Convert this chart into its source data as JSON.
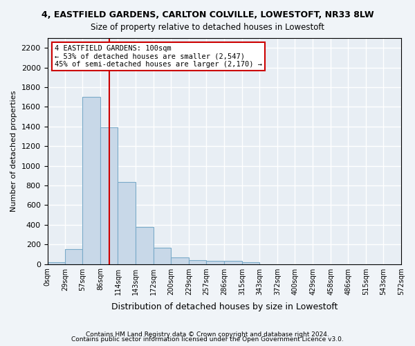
{
  "title": "4, EASTFIELD GARDENS, CARLTON COLVILLE, LOWESTOFT, NR33 8LW",
  "subtitle": "Size of property relative to detached houses in Lowestoft",
  "xlabel": "Distribution of detached houses by size in Lowestoft",
  "ylabel": "Number of detached properties",
  "bar_color": "#c8d8e8",
  "bar_edge_color": "#7aaac8",
  "bar_heights": [
    20,
    155,
    1700,
    1390,
    835,
    380,
    165,
    65,
    38,
    30,
    30,
    15,
    0,
    0,
    0,
    0,
    0,
    0,
    0,
    0
  ],
  "bin_edges": [
    0,
    29,
    57,
    86,
    114,
    143,
    172,
    200,
    229,
    257,
    286,
    315,
    343,
    372,
    400,
    429,
    458,
    486,
    515,
    543,
    572
  ],
  "tick_labels": [
    "0sqm",
    "29sqm",
    "57sqm",
    "86sqm",
    "114sqm",
    "143sqm",
    "172sqm",
    "200sqm",
    "229sqm",
    "257sqm",
    "286sqm",
    "315sqm",
    "343sqm",
    "372sqm",
    "400sqm",
    "429sqm",
    "458sqm",
    "486sqm",
    "515sqm",
    "543sqm",
    "572sqm"
  ],
  "ylim": [
    0,
    2300
  ],
  "yticks": [
    0,
    200,
    400,
    600,
    800,
    1000,
    1200,
    1400,
    1600,
    1800,
    2000,
    2200
  ],
  "vline_x": 100,
  "vline_color": "#cc0000",
  "annotation_text": "4 EASTFIELD GARDENS: 100sqm\n← 53% of detached houses are smaller (2,547)\n45% of semi-detached houses are larger (2,170) →",
  "annotation_box_color": "#ffffff",
  "annotation_box_edge": "#cc0000",
  "bg_color": "#e8eef4",
  "grid_color": "#ffffff",
  "fig_bg_color": "#f0f4f8",
  "footer_line1": "Contains HM Land Registry data © Crown copyright and database right 2024.",
  "footer_line2": "Contains public sector information licensed under the Open Government Licence v3.0."
}
